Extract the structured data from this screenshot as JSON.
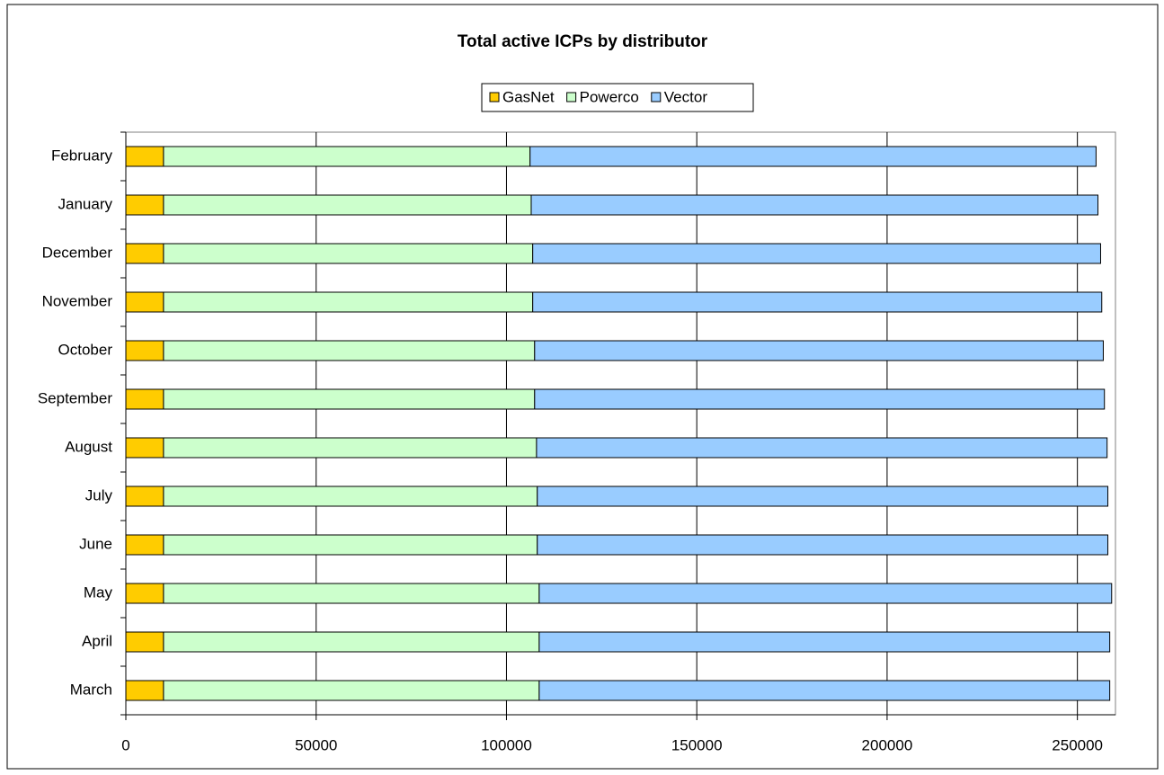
{
  "chart_data": {
    "type": "stacked_barh",
    "title": "Total active ICPs by distributor",
    "categories": [
      "March",
      "April",
      "May",
      "June",
      "July",
      "August",
      "September",
      "October",
      "November",
      "December",
      "January",
      "February"
    ],
    "series": [
      {
        "name": "GasNet",
        "color": "#ffcc00",
        "values": [
          9900,
          9900,
          9900,
          9900,
          9900,
          9900,
          9900,
          9900,
          9900,
          9900,
          9900,
          9900
        ]
      },
      {
        "name": "Powerco",
        "color": "#ccffcc",
        "values": [
          98700,
          98700,
          98700,
          98200,
          98200,
          98000,
          97500,
          97500,
          97000,
          97000,
          96600,
          96300
        ]
      },
      {
        "name": "Vector",
        "color": "#99ccff",
        "values": [
          149900,
          149900,
          150400,
          149900,
          149900,
          149900,
          149700,
          149400,
          149500,
          149200,
          148900,
          148700
        ]
      }
    ],
    "xlim": [
      0,
      260000
    ],
    "xticks": [
      0,
      50000,
      100000,
      150000,
      200000,
      250000
    ],
    "grid": true,
    "legend": "top"
  }
}
